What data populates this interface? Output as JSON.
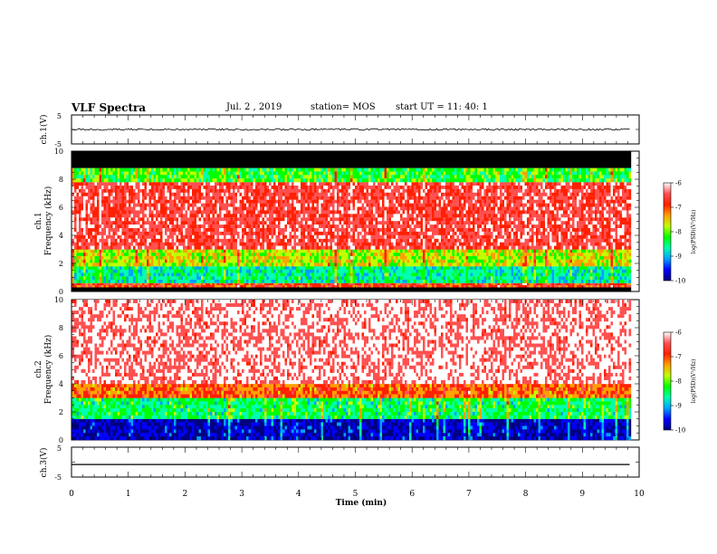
{
  "header": {
    "title": "VLF Spectra",
    "date": "Jul. 2 , 2019",
    "station": "station= MOS",
    "start": "start UT = 11: 40: 1"
  },
  "xaxis": {
    "label": "Time (min)",
    "ticks": [
      "0",
      "1",
      "2",
      "3",
      "4",
      "5",
      "6",
      "7",
      "8",
      "9",
      "10"
    ]
  },
  "panels": {
    "wave1": {
      "ylabel": "ch.1(V)",
      "ticks": [
        "5",
        "-5"
      ]
    },
    "spec1": {
      "ylabel_1": "ch.1",
      "ylabel_2": "Frequency (kHz)",
      "ticks": [
        "0",
        "2",
        "4",
        "6",
        "8",
        "10"
      ]
    },
    "spec2": {
      "ylabel_1": "ch.2",
      "ylabel_2": "Frequency (kHz)",
      "ticks": [
        "0",
        "2",
        "4",
        "6",
        "8",
        "10"
      ]
    },
    "wave3": {
      "ylabel": "ch.3(V)",
      "ticks": [
        "5",
        "-5"
      ]
    }
  },
  "colorbar": {
    "label": "log(PSD)(V²/Hz)",
    "ticks": [
      "-6",
      "-7",
      "-8",
      "-9",
      "-10"
    ],
    "colors": [
      "#000080",
      "#0000ff",
      "#00a0ff",
      "#00ffb0",
      "#00ff00",
      "#c0ff00",
      "#ffa000",
      "#ff2000",
      "#ff5050",
      "#ffffff"
    ]
  },
  "chart_data": [
    {
      "type": "line",
      "name": "ch.1 waveform",
      "xlabel": "Time (min)",
      "ylabel": "ch.1(V)",
      "xlim": [
        0,
        10
      ],
      "ylim": [
        -5,
        5
      ],
      "x_data_end": 9.85,
      "baseline": 0,
      "noise_amplitude": 0.3
    },
    {
      "type": "heatmap",
      "name": "ch.1 spectrogram",
      "xlabel": "Time (min)",
      "ylabel": "Frequency (kHz)",
      "xlim": [
        0,
        10
      ],
      "ylim": [
        0,
        10
      ],
      "zlim": [
        -10,
        -6
      ],
      "x_data_end": 9.85,
      "bands": [
        {
          "f": [
            0,
            0.3
          ],
          "logpsd": null,
          "note": "black"
        },
        {
          "f": [
            0.3,
            0.6
          ],
          "logpsd": -7.0
        },
        {
          "f": [
            0.6,
            1.8
          ],
          "logpsd": -8.6
        },
        {
          "f": [
            1.8,
            3.0
          ],
          "logpsd": -7.8
        },
        {
          "f": [
            3.0,
            7.8
          ],
          "logpsd": -6.7
        },
        {
          "f": [
            7.8,
            8.8
          ],
          "logpsd": -8.2
        },
        {
          "f": [
            8.8,
            10
          ],
          "logpsd": null,
          "note": "black"
        }
      ]
    },
    {
      "type": "heatmap",
      "name": "ch.2 spectrogram",
      "xlabel": "Time (min)",
      "ylabel": "Frequency (kHz)",
      "xlim": [
        0,
        10
      ],
      "ylim": [
        0,
        10
      ],
      "zlim": [
        -10,
        -6
      ],
      "x_data_end": 9.85,
      "bands": [
        {
          "f": [
            0,
            1.5
          ],
          "logpsd": -9.6
        },
        {
          "f": [
            1.5,
            3.0
          ],
          "logpsd": -8.4
        },
        {
          "f": [
            3.0,
            4.0
          ],
          "logpsd": -7.2
        },
        {
          "f": [
            4.0,
            10
          ],
          "logpsd": -6.4
        }
      ]
    },
    {
      "type": "line",
      "name": "ch.3 waveform",
      "xlabel": "Time (min)",
      "ylabel": "ch.3(V)",
      "xlim": [
        0,
        10
      ],
      "ylim": [
        -5,
        5
      ],
      "x_data_end": 9.85,
      "baseline": -0.8,
      "noise_amplitude": 0.0
    }
  ]
}
